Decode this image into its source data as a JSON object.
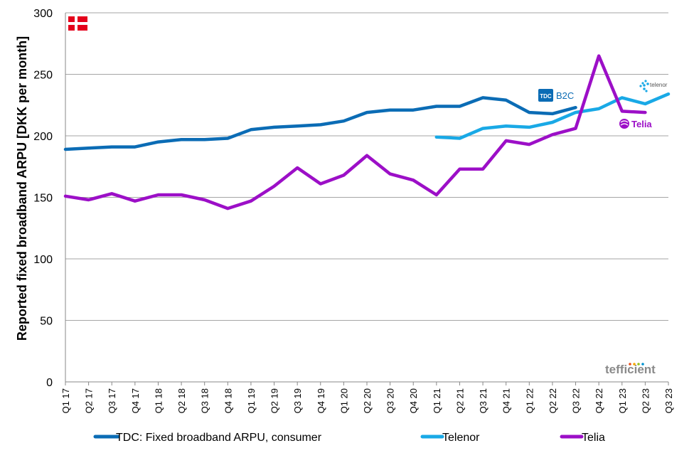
{
  "chart_data": {
    "type": "line",
    "title": "",
    "xlabel": "",
    "ylabel": "Reported fixed broadband ARPU [DKK per month]",
    "ylim": [
      0,
      300
    ],
    "yticks": [
      "0",
      "50",
      "100",
      "150",
      "200",
      "250",
      "300"
    ],
    "grid": "horizontal",
    "legend_position": "bottom",
    "categories": [
      "Q1 17",
      "Q2 17",
      "Q3 17",
      "Q4 17",
      "Q1 18",
      "Q2 18",
      "Q3 18",
      "Q4 18",
      "Q1 19",
      "Q2 19",
      "Q3 19",
      "Q4 19",
      "Q1 20",
      "Q2 20",
      "Q3 20",
      "Q4 20",
      "Q1 21",
      "Q2 21",
      "Q3 21",
      "Q4 21",
      "Q1 22",
      "Q2 22",
      "Q3 22",
      "Q4 22",
      "Q1 23",
      "Q2 23",
      "Q3 23"
    ],
    "series": [
      {
        "name": "TDC: Fixed broadband ARPU, consumer",
        "color": "#0B6CB5",
        "values": [
          189,
          190,
          191,
          191,
          195,
          197,
          197,
          198,
          205,
          207,
          208,
          209,
          212,
          219,
          221,
          221,
          224,
          224,
          231,
          229,
          219,
          218,
          223,
          null,
          null,
          null,
          null
        ]
      },
      {
        "name": "Telenor",
        "color": "#19A9E6",
        "values": [
          null,
          null,
          null,
          null,
          null,
          null,
          null,
          null,
          null,
          null,
          null,
          null,
          null,
          null,
          null,
          null,
          199,
          198,
          206,
          208,
          207,
          211,
          219,
          222,
          231,
          226,
          234
        ]
      },
      {
        "name": "Telia",
        "color": "#9C0FC7",
        "values": [
          151,
          148,
          153,
          147,
          152,
          152,
          148,
          141,
          147,
          159,
          174,
          161,
          168,
          184,
          169,
          164,
          152,
          173,
          173,
          196,
          193,
          201,
          206,
          265,
          220,
          219,
          null
        ]
      }
    ],
    "annotations": [
      {
        "text": "B2C",
        "logo": "TDC",
        "series": "TDC: Fixed broadband ARPU, consumer"
      },
      {
        "text": "telenor",
        "series": "Telenor"
      },
      {
        "text": "Telia",
        "series": "Telia"
      }
    ]
  },
  "branding": {
    "watermark": "tefficient",
    "flag": "denmark-flag",
    "tdc_logo_text": "TDC",
    "tdc_label": "B2C",
    "telenor_logo_text": "telenor",
    "telia_logo_text": "Telia"
  }
}
